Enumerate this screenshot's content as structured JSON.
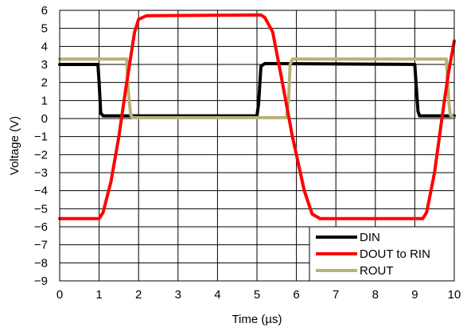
{
  "chart_data": {
    "type": "line",
    "xlabel": "Time (µs)",
    "ylabel": "Voltage (V)",
    "xlim": [
      0,
      10
    ],
    "ylim": [
      -9,
      6
    ],
    "x_ticks": [
      0,
      1,
      2,
      3,
      4,
      5,
      6,
      7,
      8,
      9,
      10
    ],
    "y_ticks": [
      6,
      5,
      4,
      3,
      2,
      1,
      0,
      -1,
      -2,
      -3,
      -4,
      -5,
      -6,
      -7,
      -8,
      -9
    ],
    "grid": true,
    "legend_position": "bottom-right",
    "series": [
      {
        "name": "DIN",
        "color": "#000000",
        "x": [
          0,
          0.97,
          1.0,
          1.04,
          1.1,
          5.0,
          5.04,
          5.1,
          5.2,
          9.0,
          9.03,
          9.08,
          9.12,
          10.0
        ],
        "y": [
          3.0,
          3.0,
          2.0,
          0.3,
          0.15,
          0.15,
          0.8,
          2.9,
          3.05,
          3.0,
          2.0,
          0.4,
          0.15,
          0.15
        ]
      },
      {
        "name": "DOUT to RIN",
        "color": "#ff0000",
        "x": [
          0,
          1.0,
          1.1,
          1.3,
          1.5,
          1.7,
          1.9,
          2.0,
          2.2,
          5.1,
          5.2,
          5.4,
          5.6,
          5.9,
          6.2,
          6.4,
          6.6,
          9.2,
          9.3,
          9.5,
          9.7,
          9.85,
          10.0
        ],
        "y": [
          -5.55,
          -5.55,
          -5.2,
          -3.5,
          -1.0,
          2.0,
          4.8,
          5.5,
          5.7,
          5.75,
          5.6,
          4.8,
          2.5,
          -1.0,
          -4.0,
          -5.3,
          -5.55,
          -5.55,
          -5.2,
          -3.0,
          0.2,
          2.5,
          4.3
        ]
      },
      {
        "name": "ROUT",
        "color": "#b7b276",
        "x": [
          0,
          1.7,
          1.74,
          1.8,
          1.85,
          5.75,
          5.8,
          5.84,
          5.9,
          9.8,
          9.86,
          9.9,
          10.0
        ],
        "y": [
          3.3,
          3.3,
          1.5,
          0.2,
          0.05,
          0.05,
          1.0,
          3.0,
          3.3,
          3.3,
          1.0,
          0.2,
          0.05
        ]
      }
    ]
  }
}
